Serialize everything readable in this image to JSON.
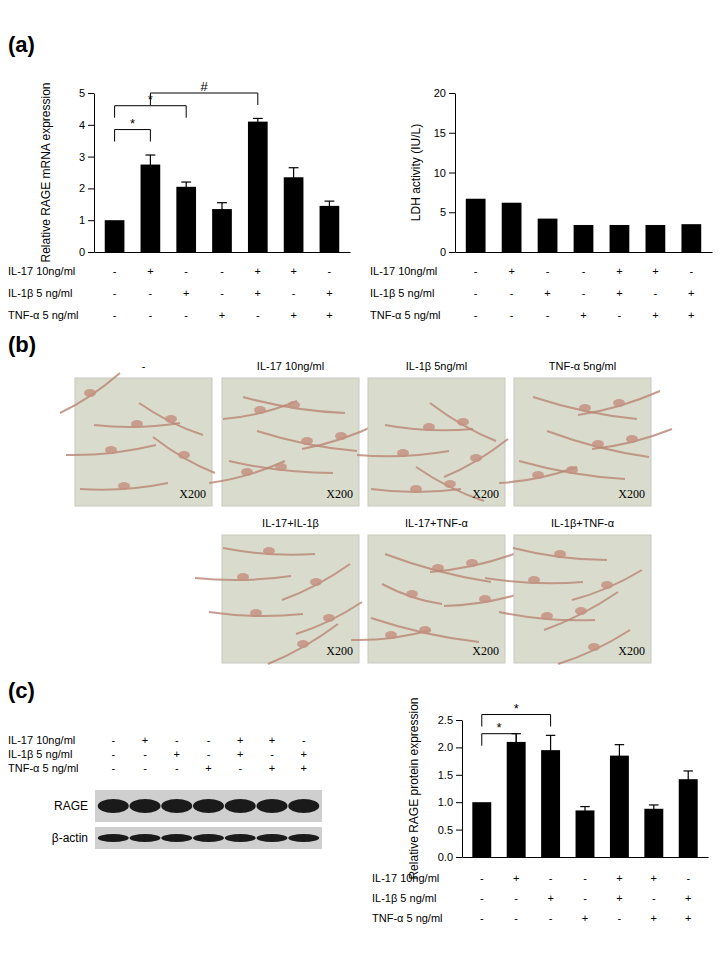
{
  "chart_data": [
    {
      "type": "bar",
      "ylabel": "Relative RAGE mRNA expression",
      "categories": [
        null,
        null,
        null,
        null,
        null,
        null,
        null
      ],
      "values": [
        1.0,
        2.75,
        2.05,
        1.35,
        4.1,
        2.35,
        1.45
      ],
      "errors": [
        null,
        0.3,
        0.15,
        0.2,
        0.1,
        0.3,
        0.15
      ],
      "color": "#000000",
      "ylim": [
        0,
        5
      ],
      "yticks": [
        0,
        1,
        2,
        3,
        4,
        5
      ],
      "tick_labels": "y",
      "treatments": [
        {
          "label": "IL-17 10ng/ml",
          "signs": [
            "-",
            "+",
            "-",
            "-",
            "+",
            "+",
            "-"
          ]
        },
        {
          "label": "IL-1β 5 ng/ml",
          "signs": [
            "-",
            "-",
            "+",
            "-",
            "+",
            "-",
            "+"
          ]
        },
        {
          "label": "TNF-α 5 ng/ml",
          "signs": [
            "-",
            "-",
            "-",
            "+",
            "-",
            "+",
            "+"
          ]
        }
      ],
      "annotations": [
        {
          "text": "*",
          "from": 0,
          "to": 2,
          "y": 4.6
        },
        {
          "text": "*",
          "from": 0,
          "to": 1,
          "y": 3.85
        },
        {
          "text": "#",
          "from": 1,
          "to": 4,
          "y": 5.0
        }
      ]
    },
    {
      "type": "bar",
      "ylabel": "LDH activity (IU/L)",
      "categories": [
        null,
        null,
        null,
        null,
        null,
        null,
        null
      ],
      "values": [
        6.7,
        6.2,
        4.2,
        3.4,
        3.4,
        3.4,
        3.5
      ],
      "color": "#000000",
      "ylim": [
        0,
        20
      ],
      "yticks": [
        0,
        5,
        10,
        15,
        20
      ],
      "tick_labels": "y",
      "treatments": [
        {
          "label": "IL-17 10ng/ml",
          "signs": [
            "-",
            "+",
            "-",
            "-",
            "+",
            "+",
            "-"
          ]
        },
        {
          "label": "IL-1β 5 ng/ml",
          "signs": [
            "-",
            "-",
            "+",
            "-",
            "+",
            "-",
            "+"
          ]
        },
        {
          "label": "TNF-α 5 ng/ml",
          "signs": [
            "-",
            "-",
            "-",
            "+",
            "-",
            "+",
            "+"
          ]
        }
      ]
    },
    {
      "type": "bar",
      "ylabel": "Relative RAGE protein expression",
      "categories": [
        null,
        null,
        null,
        null,
        null,
        null,
        null
      ],
      "values": [
        1.0,
        2.1,
        1.95,
        0.85,
        1.85,
        0.88,
        1.42
      ],
      "errors": [
        null,
        0.15,
        0.27,
        0.07,
        0.2,
        0.07,
        0.15
      ],
      "color": "#000000",
      "ylim": [
        0,
        2.5
      ],
      "yticks": [
        {
          "value": 0,
          "label": "0.0"
        },
        0.5,
        {
          "value": 1,
          "label": "1.0"
        },
        1.5,
        {
          "value": 2,
          "label": "2.0"
        },
        2.5
      ],
      "tick_labels": "y",
      "treatments": [
        {
          "label": "IL-17 10ng/ml",
          "signs": [
            "-",
            "+",
            "-",
            "-",
            "+",
            "+",
            "-"
          ]
        },
        {
          "label": "IL-1β 5 ng/ml",
          "signs": [
            "-",
            "-",
            "+",
            "-",
            "+",
            "-",
            "+"
          ]
        },
        {
          "label": "TNF-α 5 ng/ml",
          "signs": [
            "-",
            "-",
            "-",
            "+",
            "-",
            "+",
            "+"
          ]
        }
      ],
      "annotations": [
        {
          "text": "*",
          "from": 0,
          "to": 1,
          "y": 2.25
        },
        {
          "text": "*",
          "from": 0,
          "to": 2,
          "y": 2.6
        }
      ]
    }
  ],
  "panel_labels": [
    "(a)",
    "(b)",
    "(c)"
  ],
  "micrographs": [
    {
      "label": "-",
      "magnification": "X200"
    },
    {
      "label": "IL-17 10ng/ml",
      "magnification": "X200"
    },
    {
      "label": "IL-1β 5ng/ml",
      "magnification": "X200"
    },
    {
      "label": "TNF-α 5ng/ml",
      "magnification": "X200"
    },
    {
      "label": "IL-17+IL-1β",
      "magnification": "X200"
    },
    {
      "label": "IL-17+TNF-α",
      "magnification": "X200"
    },
    {
      "label": "IL-1β+TNF-α",
      "magnification": "X200"
    }
  ],
  "blot": {
    "bands": [
      "RAGE",
      "β-actin"
    ],
    "treatments": [
      {
        "label": "IL-17 10ng/ml",
        "signs": [
          "-",
          "+",
          "-",
          "-",
          "+",
          "+",
          "-"
        ]
      },
      {
        "label": "IL-1β 5 ng/ml",
        "signs": [
          "-",
          "-",
          "+",
          "-",
          "+",
          "-",
          "+"
        ]
      },
      {
        "label": "TNF-α 5 ng/ml",
        "signs": [
          "-",
          "-",
          "-",
          "+",
          "-",
          "+",
          "+"
        ]
      }
    ]
  }
}
